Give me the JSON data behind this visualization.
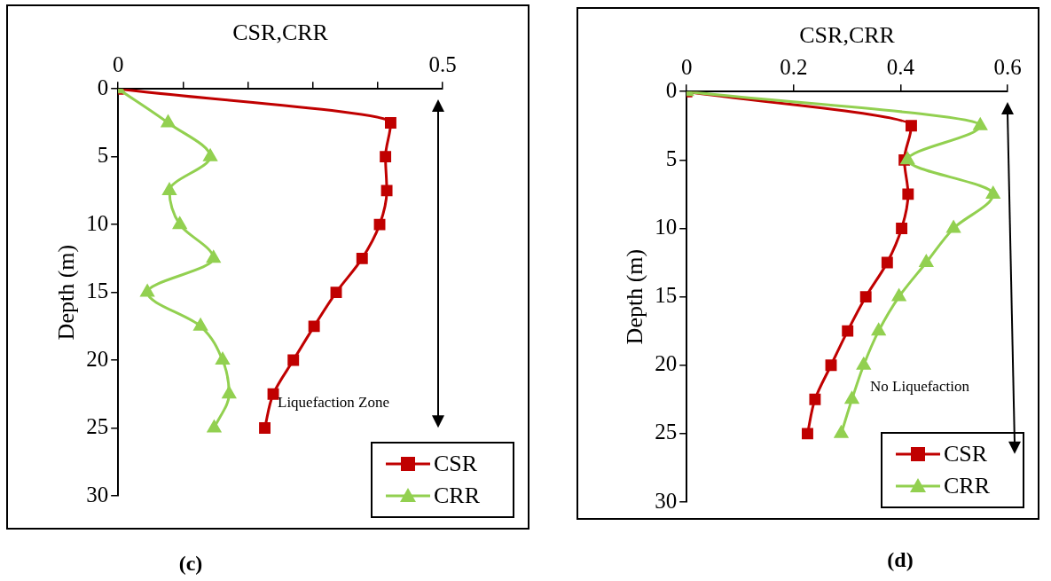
{
  "chart_data": [
    {
      "type": "line",
      "orientation": "horizontal",
      "xlabel": "CSR,CRR",
      "ylabel": "Depth (m)",
      "x": [
        0,
        2.5,
        5,
        7.5,
        10,
        12.5,
        15,
        17.5,
        20,
        22.5,
        25
      ],
      "series": [
        {
          "name": "CSR",
          "color": "#c00000",
          "marker": "square",
          "values": [
            0,
            0.42,
            0.412,
            0.414,
            0.403,
            0.376,
            0.336,
            0.302,
            0.27,
            0.239,
            0.226
          ]
        },
        {
          "name": "CRR",
          "color": "#92d050",
          "marker": "triangle",
          "values": [
            0,
            0.077,
            0.142,
            0.079,
            0.095,
            0.147,
            0.045,
            0.127,
            0.161,
            0.171,
            0.148
          ]
        }
      ],
      "xlim": [
        0,
        0.5
      ],
      "xticks": [
        0,
        {
          "value": 0.1,
          "label": null
        },
        {
          "value": 0.2,
          "label": null
        },
        {
          "value": 0.3,
          "label": null
        },
        {
          "value": 0.4,
          "label": null
        },
        0.5
      ],
      "ylim": [
        30,
        0
      ],
      "yticks": [
        0,
        5,
        10,
        15,
        20,
        25,
        30
      ],
      "legend": "bottom right",
      "grid": false,
      "line_style": "solid",
      "annotations": [
        "Liquefaction Zone",
        "(c)"
      ]
    },
    {
      "type": "line",
      "orientation": "horizontal",
      "xlabel": "CSR,CRR",
      "ylabel": "Depth (m)",
      "x": [
        0,
        2.5,
        5,
        7.5,
        10,
        12.5,
        15,
        17.5,
        20,
        22.5,
        25
      ],
      "series": [
        {
          "name": "CSR",
          "color": "#c00000",
          "marker": "square",
          "values": [
            0,
            0.42,
            0.407,
            0.414,
            0.402,
            0.375,
            0.335,
            0.301,
            0.27,
            0.24,
            0.226
          ]
        },
        {
          "name": "CRR",
          "color": "#92d050",
          "marker": "triangle",
          "values": [
            0,
            0.549,
            0.413,
            0.573,
            0.499,
            0.448,
            0.397,
            0.359,
            0.331,
            0.309,
            0.289
          ]
        }
      ],
      "xlim": [
        0,
        0.6
      ],
      "xticks": [
        0,
        0.2,
        0.4,
        0.6
      ],
      "ylim": [
        30,
        0
      ],
      "yticks": [
        0,
        5,
        10,
        15,
        20,
        25,
        30
      ],
      "legend": "bottom right",
      "grid": false,
      "line_style": "solid",
      "annotations": [
        "No Liquefaction",
        "(d)"
      ]
    }
  ]
}
